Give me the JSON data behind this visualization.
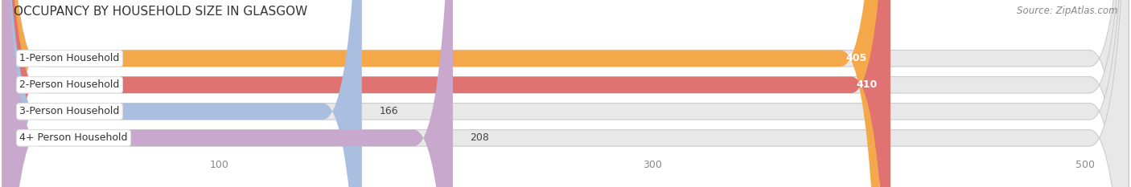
{
  "title": "OCCUPANCY BY HOUSEHOLD SIZE IN GLASGOW",
  "source": "Source: ZipAtlas.com",
  "categories": [
    "1-Person Household",
    "2-Person Household",
    "3-Person Household",
    "4+ Person Household"
  ],
  "values": [
    405,
    410,
    166,
    208
  ],
  "colors": [
    "#F5A84A",
    "#E07272",
    "#AABFE0",
    "#C8A8CC"
  ],
  "bar_label_colors": [
    "white",
    "white",
    "#555555",
    "#555555"
  ],
  "xlim_data": [
    0,
    520
  ],
  "xticks": [
    100,
    300,
    500
  ],
  "background_color": "#ffffff",
  "bar_bg_color": "#e8e8e8",
  "title_fontsize": 11,
  "source_fontsize": 8.5,
  "label_fontsize": 9,
  "value_fontsize": 9,
  "tick_fontsize": 9,
  "bar_height": 0.62,
  "figsize": [
    14.06,
    2.33
  ]
}
